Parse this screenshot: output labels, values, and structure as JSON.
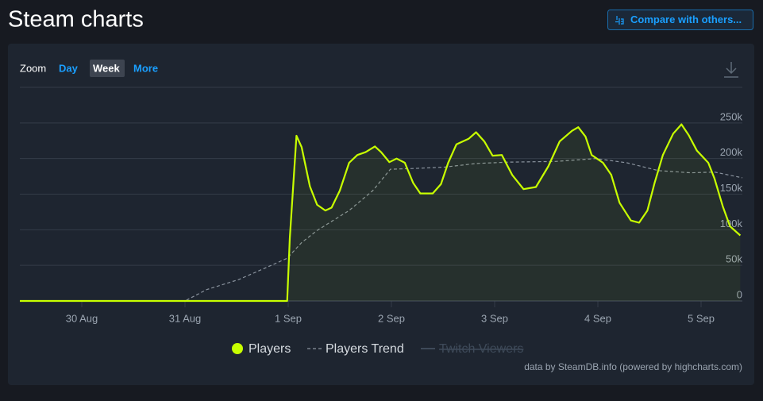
{
  "header": {
    "title": "Steam charts",
    "button": "Compare with others..."
  },
  "zoom": {
    "label": "Zoom",
    "options": [
      "Day",
      "Week",
      "More"
    ],
    "selected": 1
  },
  "chart_data": {
    "type": "line",
    "credits": "data by SteamDB.info (powered by highcharts.com)",
    "xlim": [
      -0.6,
      6.4
    ],
    "xticks": [
      {
        "value": 0,
        "label": "30 Aug"
      },
      {
        "value": 1,
        "label": "31 Aug"
      },
      {
        "value": 2,
        "label": "1 Sep"
      },
      {
        "value": 3,
        "label": "2 Sep"
      },
      {
        "value": 4,
        "label": "3 Sep"
      },
      {
        "value": 5,
        "label": "4 Sep"
      },
      {
        "value": 6,
        "label": "5 Sep"
      }
    ],
    "ylim": [
      0,
      300000
    ],
    "yticks": [
      0,
      {
        "value": 50000,
        "label": "50k"
      },
      {
        "value": 100000,
        "label": "100k"
      },
      {
        "value": 150000,
        "label": "150k"
      },
      {
        "value": 200000,
        "label": "200k"
      },
      {
        "value": 250000,
        "label": "250k"
      },
      {
        "value": 300000,
        "label": ""
      }
    ],
    "grid": true,
    "series": [
      {
        "name": "Players",
        "color": "#c8ff00",
        "style": "solid",
        "area": true,
        "x": [
          -0.6,
          1.99,
          2.015,
          2.08,
          2.13,
          2.21,
          2.28,
          2.36,
          2.42,
          2.5,
          2.59,
          2.67,
          2.75,
          2.84,
          2.9,
          2.98,
          3.05,
          3.13,
          3.21,
          3.28,
          3.4,
          3.48,
          3.55,
          3.63,
          3.75,
          3.82,
          3.9,
          3.98,
          4.07,
          4.17,
          4.28,
          4.4,
          4.52,
          4.63,
          4.75,
          4.81,
          4.88,
          4.94,
          5.05,
          5.13,
          5.21,
          5.32,
          5.4,
          5.48,
          5.55,
          5.63,
          5.73,
          5.81,
          5.88,
          5.96,
          6.07,
          6.13,
          6.21,
          6.28,
          6.38
        ],
        "values": [
          0,
          0,
          88000,
          232000,
          216000,
          161000,
          135000,
          127000,
          131000,
          155000,
          194000,
          205000,
          209000,
          217000,
          209000,
          195000,
          200000,
          194000,
          166000,
          151000,
          151000,
          164000,
          194000,
          220000,
          228000,
          237000,
          224000,
          204000,
          205000,
          177000,
          157000,
          160000,
          189000,
          224000,
          239000,
          244000,
          231000,
          205000,
          194000,
          177000,
          138000,
          113000,
          110000,
          127000,
          166000,
          205000,
          235000,
          248000,
          233000,
          211000,
          194000,
          172000,
          133000,
          105000,
          92000
        ]
      },
      {
        "name": "Players Trend",
        "color": "#8a939e",
        "style": "dashed",
        "x": [
          -0.6,
          1.0,
          1.21,
          1.52,
          1.82,
          1.99,
          2.13,
          2.28,
          2.59,
          2.82,
          2.99,
          3.21,
          3.52,
          3.82,
          4.13,
          4.59,
          4.98,
          5.28,
          5.59,
          5.9,
          6.13,
          6.4
        ],
        "values": [
          0,
          0,
          16000,
          30000,
          49000,
          60000,
          82000,
          99000,
          127000,
          155000,
          185000,
          186000,
          188000,
          193000,
          195000,
          196000,
          200000,
          194000,
          183000,
          180000,
          181000,
          173000
        ]
      },
      {
        "name": "Twitch Viewers",
        "color": "#3e4a59",
        "style": "solid",
        "visible": false
      }
    ]
  }
}
